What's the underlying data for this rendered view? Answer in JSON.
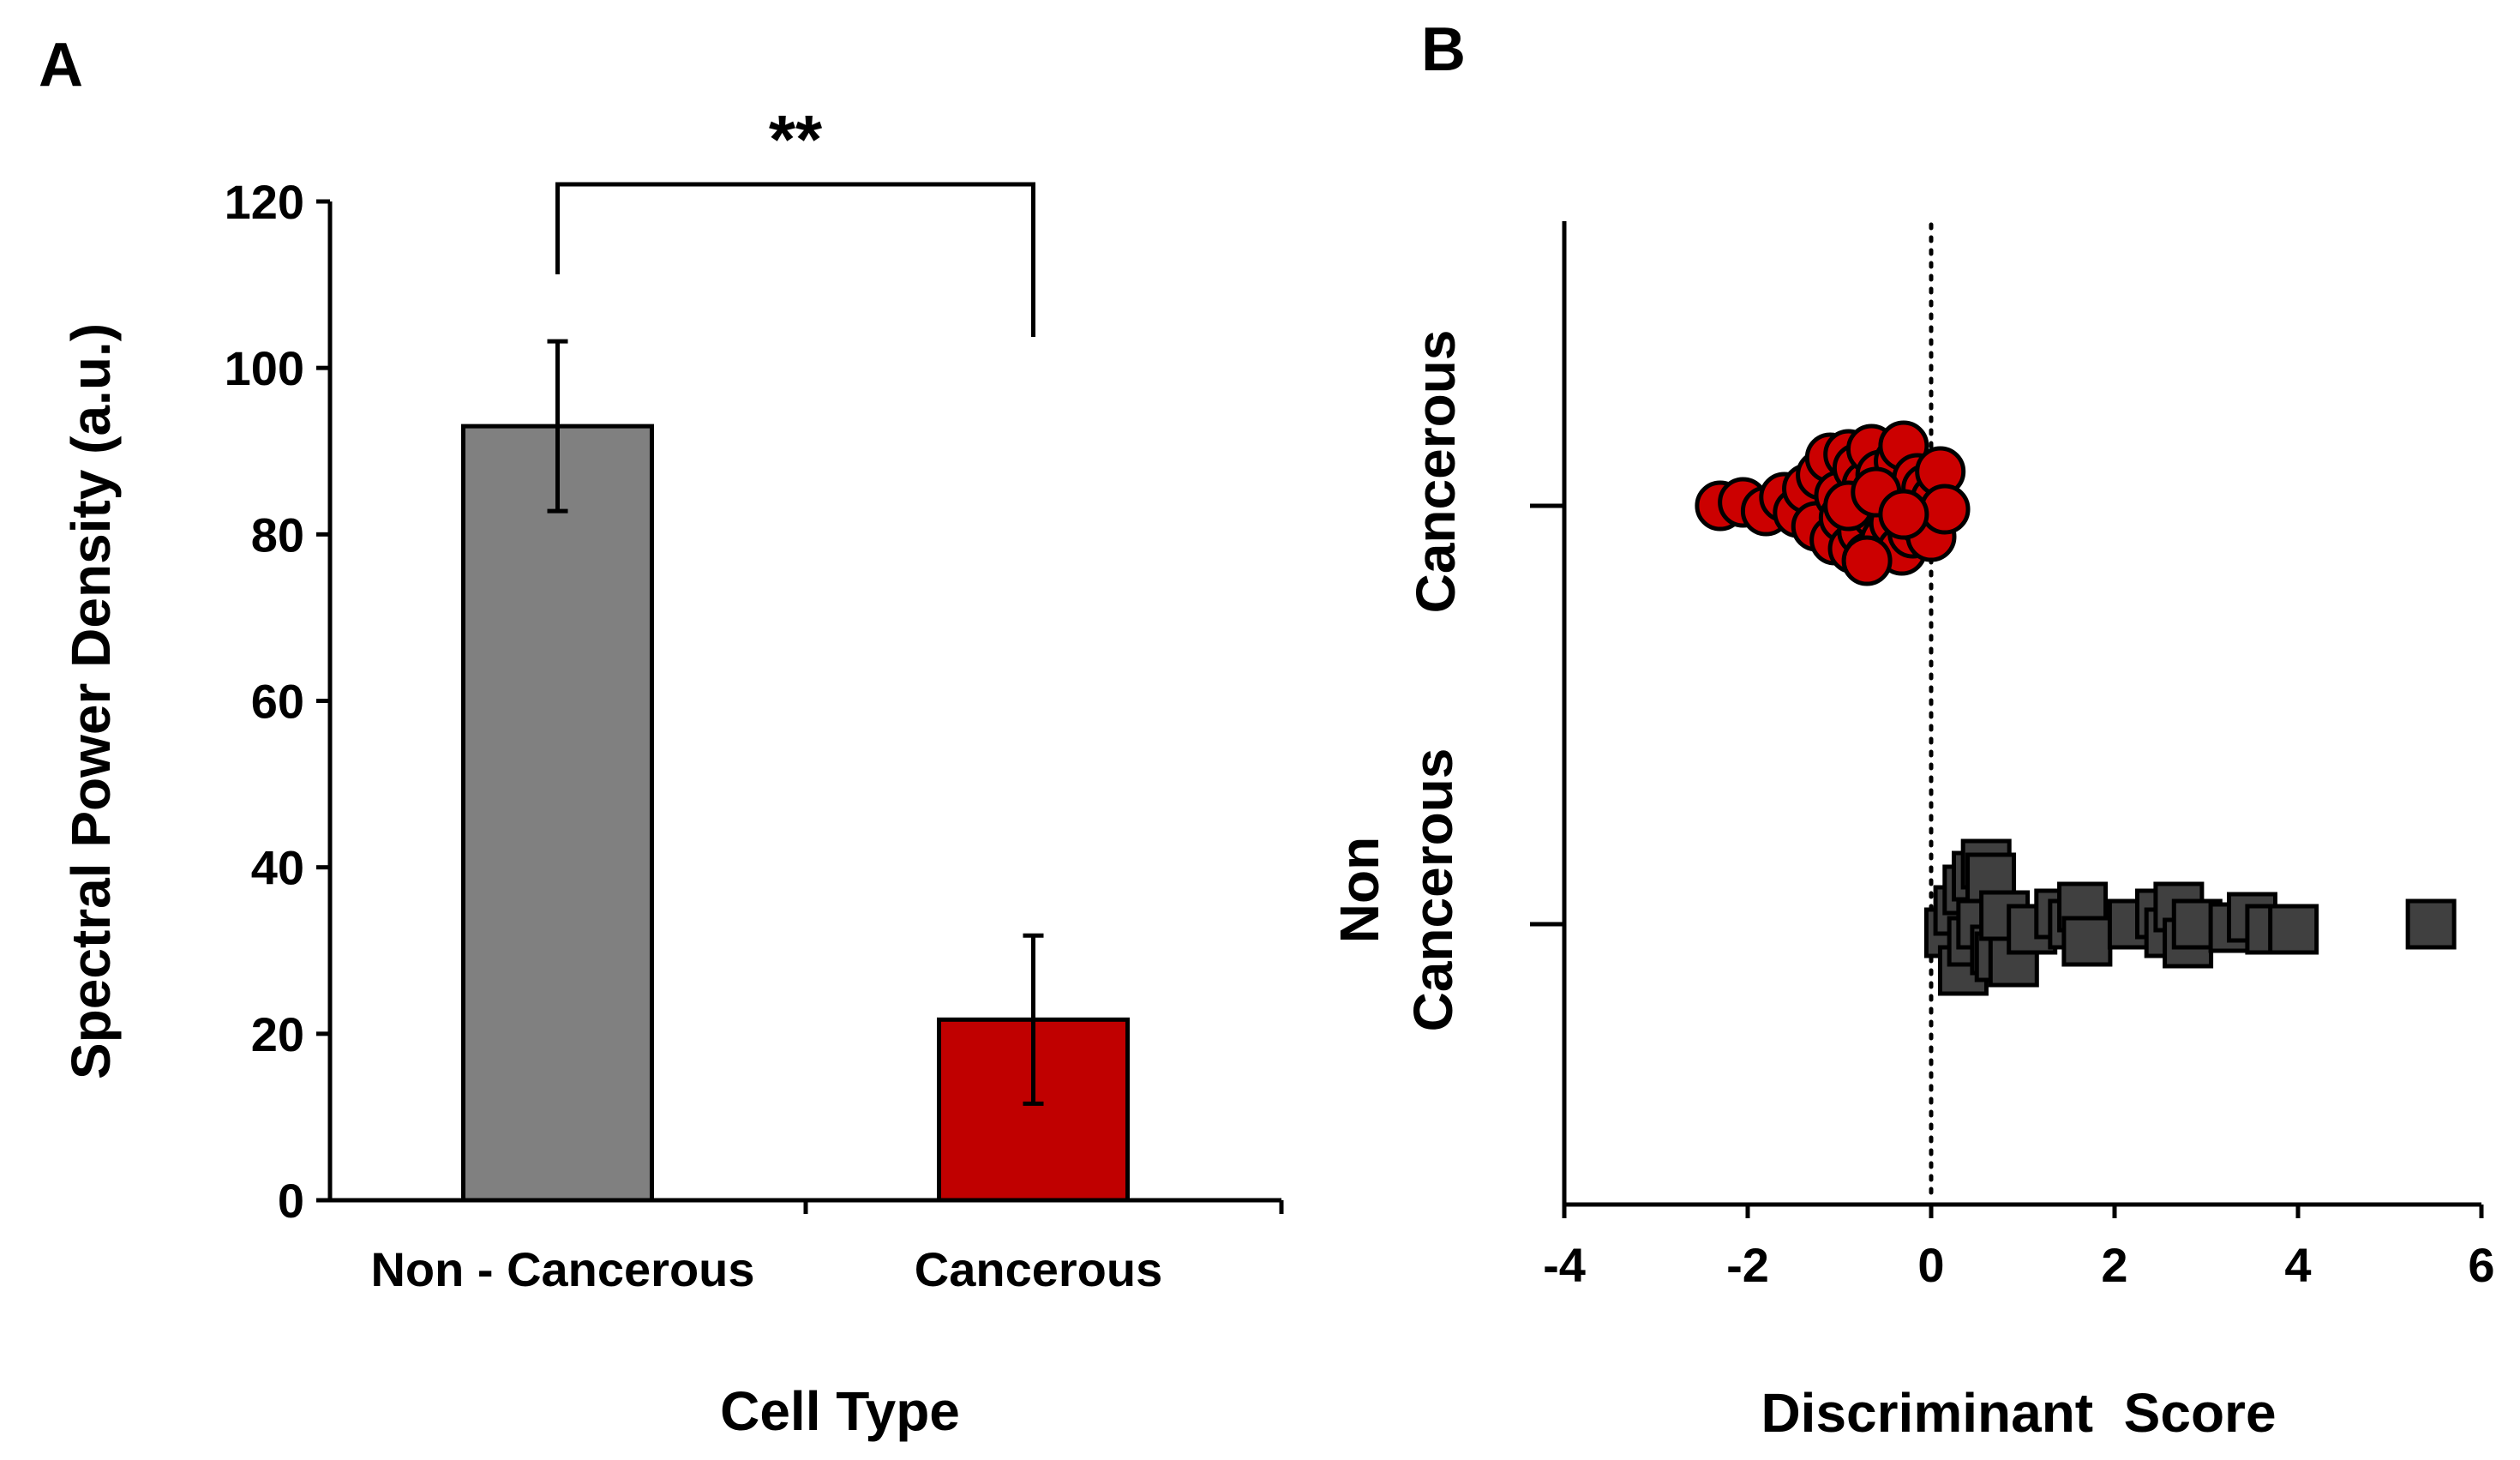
{
  "chart_data": [
    {
      "panel": "A",
      "type": "bar",
      "title": "",
      "xlabel": "Cell Type",
      "ylabel": "Spectral Power Density (a.u.)",
      "ylim": [
        0,
        120
      ],
      "yticks": [
        "0",
        "20",
        "40",
        "60",
        "80",
        "100",
        "120"
      ],
      "categories": [
        "Non - Cancerous",
        "Cancerous"
      ],
      "values": [
        93,
        21.7
      ],
      "errors": [
        10.2,
        10.1
      ],
      "colors": [
        "#808080",
        "#c00000"
      ],
      "significance": {
        "label": "**",
        "between": [
          0,
          1
        ]
      }
    },
    {
      "panel": "B",
      "type": "scatter",
      "title": "",
      "xlabel": "Discriminant  Score",
      "ylabel": "",
      "xlim": [
        -4,
        6
      ],
      "xticks": [
        "-4",
        "-2",
        "0",
        "2",
        "4",
        "6"
      ],
      "reference_line": {
        "x": 0,
        "style": "dotted"
      },
      "categories": [
        "Non\nCancerous",
        "Cancerous"
      ],
      "series": [
        {
          "name": "Cancerous",
          "marker": "circle",
          "color": "#cc0000",
          "points": [
            {
              "x": -2.3,
              "y": 0.0
            },
            {
              "x": -2.05,
              "y": 0.02
            },
            {
              "x": -1.8,
              "y": -0.03
            },
            {
              "x": -1.6,
              "y": 0.05
            },
            {
              "x": -1.45,
              "y": -0.04
            },
            {
              "x": -1.35,
              "y": 0.1
            },
            {
              "x": -1.25,
              "y": -0.12
            },
            {
              "x": -1.2,
              "y": 0.18
            },
            {
              "x": -1.1,
              "y": 0.28
            },
            {
              "x": -1.05,
              "y": -0.2
            },
            {
              "x": -1.0,
              "y": 0.06
            },
            {
              "x": -0.95,
              "y": -0.07
            },
            {
              "x": -0.9,
              "y": 0.3
            },
            {
              "x": -0.85,
              "y": -0.25
            },
            {
              "x": -0.8,
              "y": 0.22
            },
            {
              "x": -0.75,
              "y": -0.15
            },
            {
              "x": -0.7,
              "y": 0.12
            },
            {
              "x": -0.68,
              "y": -0.3
            },
            {
              "x": -0.65,
              "y": 0.33
            },
            {
              "x": -0.6,
              "y": -0.05
            },
            {
              "x": -0.55,
              "y": 0.18
            },
            {
              "x": -0.5,
              "y": -0.2
            },
            {
              "x": -0.45,
              "y": 0.08
            },
            {
              "x": -0.4,
              "y": -0.1
            },
            {
              "x": -0.35,
              "y": 0.26
            },
            {
              "x": -0.32,
              "y": -0.26
            },
            {
              "x": -0.3,
              "y": 0.35
            },
            {
              "x": -0.25,
              "y": 0.0
            },
            {
              "x": -0.2,
              "y": -0.16
            },
            {
              "x": -0.15,
              "y": 0.16
            },
            {
              "x": -0.12,
              "y": -0.08
            },
            {
              "x": -0.05,
              "y": 0.1
            },
            {
              "x": 0.0,
              "y": -0.18
            },
            {
              "x": 0.05,
              "y": 0.04
            },
            {
              "x": 0.1,
              "y": 0.2
            },
            {
              "x": 0.15,
              "y": -0.02
            },
            {
              "x": -0.9,
              "y": 0.0
            },
            {
              "x": -0.6,
              "y": 0.08
            },
            {
              "x": -0.3,
              "y": -0.05
            },
            {
              "x": -0.7,
              "y": -0.32
            }
          ]
        },
        {
          "name": "Non Cancerous",
          "marker": "square",
          "color": "#404040",
          "points": [
            {
              "x": 0.2,
              "y": -0.05
            },
            {
              "x": 0.3,
              "y": 0.08
            },
            {
              "x": 0.35,
              "y": -0.27
            },
            {
              "x": 0.4,
              "y": 0.2
            },
            {
              "x": 0.45,
              "y": -0.1
            },
            {
              "x": 0.5,
              "y": 0.28
            },
            {
              "x": 0.55,
              "y": 0.0
            },
            {
              "x": 0.6,
              "y": 0.35
            },
            {
              "x": 0.65,
              "y": 0.27
            },
            {
              "x": 0.7,
              "y": -0.15
            },
            {
              "x": 0.75,
              "y": -0.19
            },
            {
              "x": 0.8,
              "y": 0.05
            },
            {
              "x": 0.9,
              "y": -0.22
            },
            {
              "x": 1.1,
              "y": -0.03
            },
            {
              "x": 1.4,
              "y": 0.06
            },
            {
              "x": 1.55,
              "y": 0.0
            },
            {
              "x": 1.65,
              "y": 0.1
            },
            {
              "x": 1.7,
              "y": -0.1
            },
            {
              "x": 2.2,
              "y": 0.0
            },
            {
              "x": 2.5,
              "y": 0.06
            },
            {
              "x": 2.6,
              "y": -0.05
            },
            {
              "x": 2.7,
              "y": 0.1
            },
            {
              "x": 2.8,
              "y": -0.11
            },
            {
              "x": 2.9,
              "y": 0.0
            },
            {
              "x": 3.3,
              "y": -0.02
            },
            {
              "x": 3.5,
              "y": 0.04
            },
            {
              "x": 3.7,
              "y": -0.03
            },
            {
              "x": 3.95,
              "y": -0.03
            },
            {
              "x": 5.45,
              "y": 0.0
            }
          ]
        }
      ]
    }
  ],
  "panels": {
    "a_label": "A",
    "b_label": "B"
  }
}
